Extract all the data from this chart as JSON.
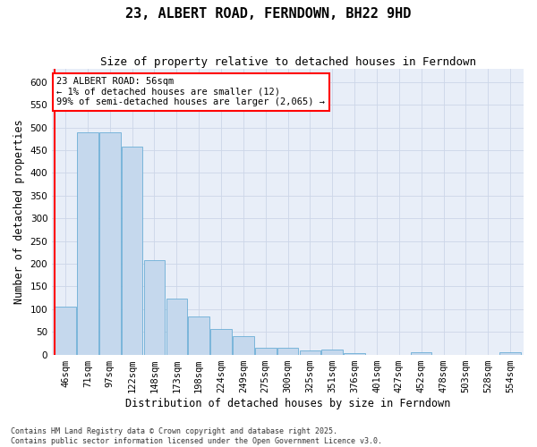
{
  "title": "23, ALBERT ROAD, FERNDOWN, BH22 9HD",
  "subtitle": "Size of property relative to detached houses in Ferndown",
  "xlabel": "Distribution of detached houses by size in Ferndown",
  "ylabel": "Number of detached properties",
  "footer": "Contains HM Land Registry data © Crown copyright and database right 2025.\nContains public sector information licensed under the Open Government Licence v3.0.",
  "categories": [
    "46sqm",
    "71sqm",
    "97sqm",
    "122sqm",
    "148sqm",
    "173sqm",
    "198sqm",
    "224sqm",
    "249sqm",
    "275sqm",
    "300sqm",
    "325sqm",
    "351sqm",
    "376sqm",
    "401sqm",
    "427sqm",
    "452sqm",
    "478sqm",
    "503sqm",
    "528sqm",
    "554sqm"
  ],
  "values": [
    105,
    490,
    490,
    458,
    207,
    123,
    84,
    57,
    40,
    15,
    15,
    10,
    11,
    4,
    0,
    0,
    6,
    0,
    0,
    0,
    6
  ],
  "bar_color": "#c5d8ed",
  "bar_edge_color": "#6baed6",
  "annotation_text": "23 ALBERT ROAD: 56sqm\n← 1% of detached houses are smaller (12)\n99% of semi-detached houses are larger (2,065) →",
  "annotation_box_color": "white",
  "annotation_box_edge_color": "red",
  "ylim": [
    0,
    630
  ],
  "yticks": [
    0,
    50,
    100,
    150,
    200,
    250,
    300,
    350,
    400,
    450,
    500,
    550,
    600
  ],
  "grid_color": "#ccd6e8",
  "bg_color": "#e8eef8",
  "title_fontsize": 11,
  "subtitle_fontsize": 9,
  "axis_label_fontsize": 8.5,
  "tick_fontsize": 7.5,
  "annotation_fontsize": 7.5,
  "footer_fontsize": 6
}
